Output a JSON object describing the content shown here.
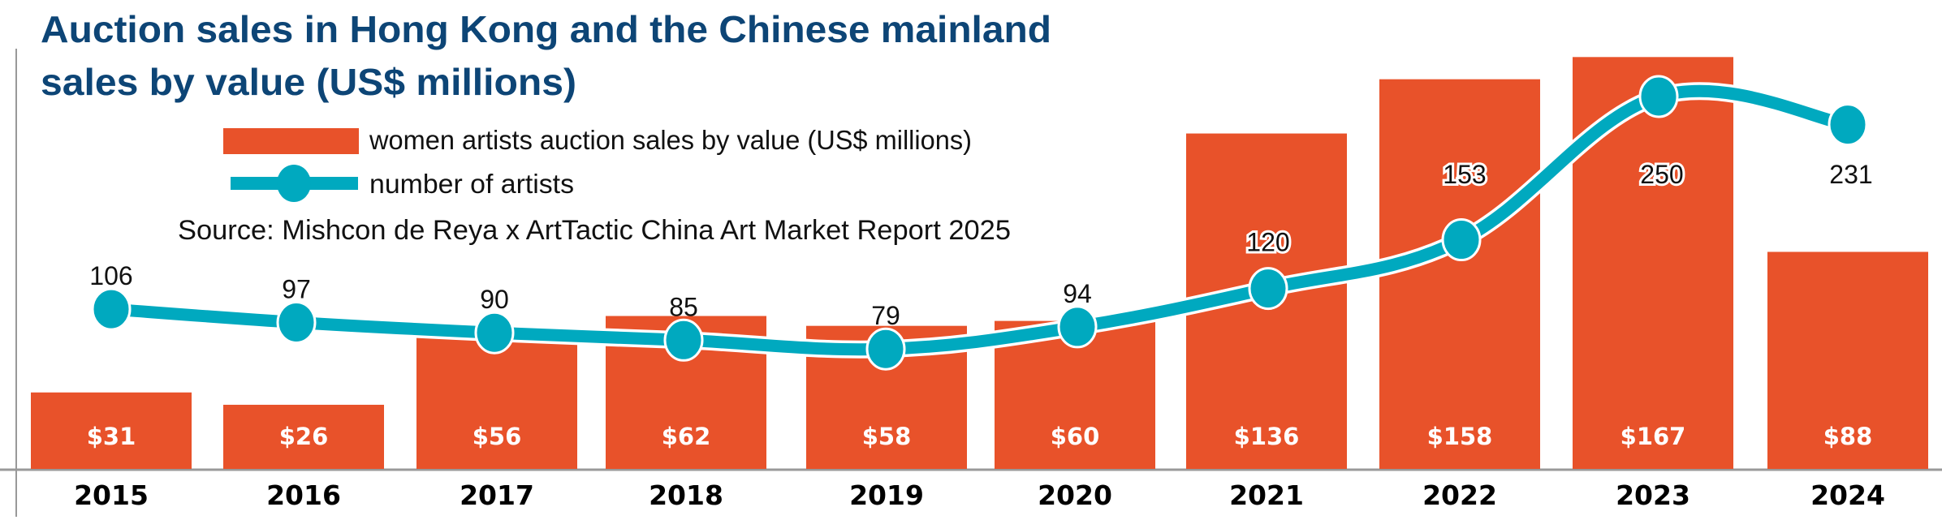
{
  "chart_data": {
    "type": "bar",
    "title": "Auction sales in Hong Kong and the Chinese mainland sales by value (US$ millions)",
    "title_lines": [
      "Auction sales in Hong Kong and the Chinese mainland",
      "sales by value (US$ millions)"
    ],
    "source": "Source: Mishcon de Reya x ArtTactic China Art Market Report 2025",
    "categories": [
      "2015",
      "2016",
      "2017",
      "2018",
      "2019",
      "2020",
      "2021",
      "2022",
      "2023",
      "2024"
    ],
    "series": [
      {
        "name": "women artists auction sales by value (US$ millions)",
        "type": "bar",
        "color": "#e8522a",
        "values": [
          31,
          26,
          56,
          62,
          58,
          60,
          136,
          158,
          167,
          88
        ],
        "labels": [
          "$31",
          "$26",
          "$56",
          "$62",
          "$58",
          "$60",
          "$136",
          "$158",
          "$167",
          "$88"
        ]
      },
      {
        "name": "number of artists",
        "type": "line",
        "color": "#00a9bf",
        "values": [
          106,
          97,
          90,
          85,
          79,
          94,
          120,
          153,
          250,
          231
        ],
        "labels": [
          "106",
          "97",
          "90",
          "85",
          "79",
          "94",
          "120",
          "153",
          "250",
          "231"
        ]
      }
    ],
    "legend": {
      "placement": "top-left",
      "entries": [
        "women artists auction sales by value (US$ millions)",
        "number of artists"
      ]
    },
    "xlabel": "",
    "ylabel": "",
    "ylim_bars": [
      0,
      170
    ],
    "ylim_line": [
      0,
      255
    ],
    "grid": false
  }
}
